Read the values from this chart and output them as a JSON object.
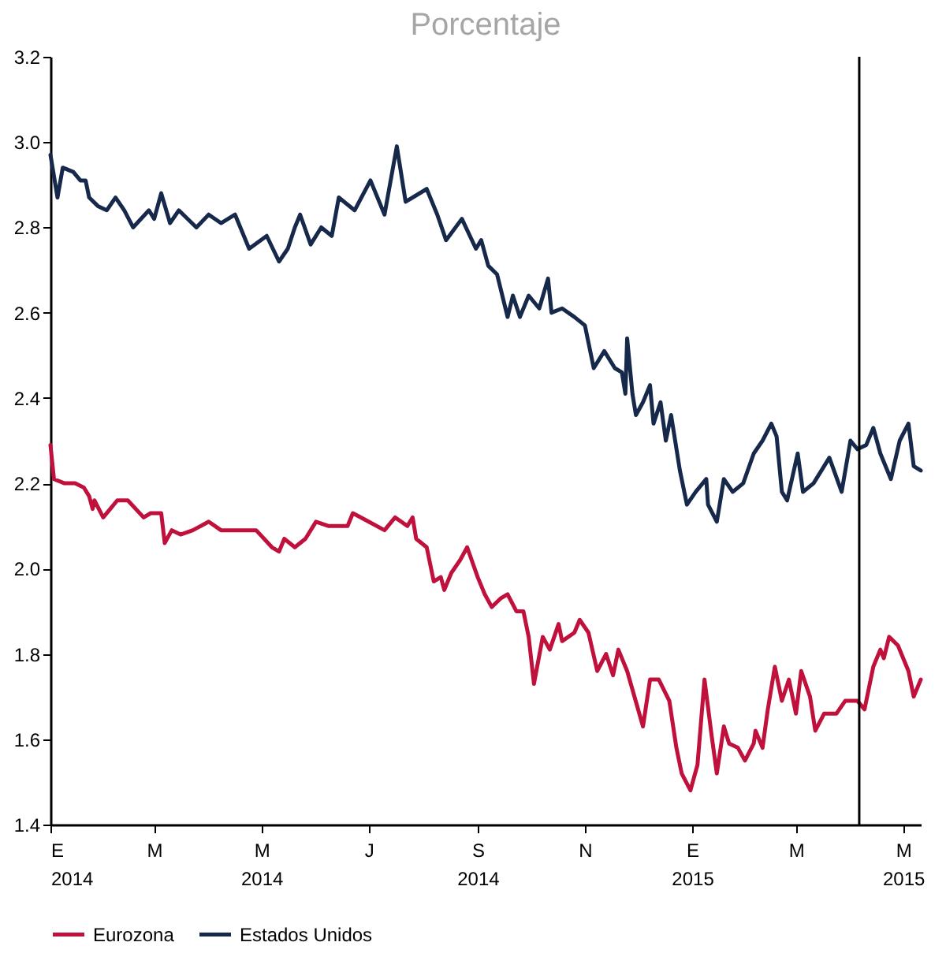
{
  "chart_data": {
    "type": "line",
    "title": "Porcentaje",
    "legend": "bottom",
    "line_style": "solid",
    "marker": "none",
    "grid": false,
    "xlim": [
      "2014-01-01",
      "2015-05-11"
    ],
    "ylim": [
      1.4,
      3.2
    ],
    "yticks": [
      1.4,
      1.6,
      1.8,
      {
        "value": 2,
        "label": "2.0"
      },
      2.2,
      2.4,
      2.6,
      2.8,
      {
        "value": 3,
        "label": "3.0"
      },
      3.2
    ],
    "xticks": [
      {
        "value": "2014-01-01",
        "label": "E 2014"
      },
      {
        "value": "2014-03-01",
        "label": "M"
      },
      {
        "value": "2014-05-01",
        "label": "M 2014"
      },
      {
        "value": "2014-07-01",
        "label": "J"
      },
      {
        "value": "2014-09-01",
        "label": "S 2014"
      },
      {
        "value": "2014-11-01",
        "label": "N"
      },
      {
        "value": "2015-01-01",
        "label": "E 2015"
      },
      {
        "value": "2015-03-01",
        "label": "M"
      },
      {
        "value": "2015-05-01",
        "label": "M 2015"
      }
    ],
    "ref_lines": [
      {
        "axis": "x",
        "value": "2015-04-06",
        "color": "#000000",
        "line_style": "solid"
      }
    ],
    "series": [
      {
        "name": "Eurozona",
        "color": "#c0103c",
        "x": [
          "2014-01-01",
          "2014-01-03",
          "2014-01-09",
          "2014-01-15",
          "2014-01-20",
          "2014-01-23",
          "2014-01-25",
          "2014-01-26",
          "2014-01-31",
          "2014-02-04",
          "2014-02-08",
          "2014-02-14",
          "2014-02-23",
          "2014-02-27",
          "2014-03-05",
          "2014-03-07",
          "2014-03-11",
          "2014-03-16",
          "2014-03-23",
          "2014-04-01",
          "2014-04-08",
          "2014-04-20",
          "2014-04-28",
          "2014-05-07",
          "2014-05-11",
          "2014-05-14",
          "2014-05-20",
          "2014-05-26",
          "2014-06-01",
          "2014-06-08",
          "2014-06-19",
          "2014-06-22",
          "2014-07-01",
          "2014-07-10",
          "2014-07-16",
          "2014-07-23",
          "2014-07-26",
          "2014-07-28",
          "2014-08-03",
          "2014-08-07",
          "2014-08-11",
          "2014-08-13",
          "2014-08-17",
          "2014-08-22",
          "2014-08-26",
          "2014-09-01",
          "2014-09-05",
          "2014-09-09",
          "2014-09-14",
          "2014-09-18",
          "2014-09-23",
          "2014-09-27",
          "2014-09-30",
          "2014-10-03",
          "2014-10-08",
          "2014-10-12",
          "2014-10-17",
          "2014-10-19",
          "2014-10-26",
          "2014-10-29",
          "2014-11-03",
          "2014-11-08",
          "2014-11-13",
          "2014-11-17",
          "2014-11-20",
          "2014-11-25",
          "2014-12-04",
          "2014-12-08",
          "2014-12-13",
          "2014-12-19",
          "2014-12-23",
          "2014-12-26",
          "2014-12-31",
          "2015-01-04",
          "2015-01-08",
          "2015-01-12",
          "2015-01-15",
          "2015-01-19",
          "2015-01-22",
          "2015-01-27",
          "2015-01-31",
          "2015-02-05",
          "2015-02-06",
          "2015-02-10",
          "2015-02-13",
          "2015-02-17",
          "2015-02-21",
          "2015-02-25",
          "2015-03-01",
          "2015-03-04",
          "2015-03-09",
          "2015-03-12",
          "2015-03-17",
          "2015-03-24",
          "2015-03-29",
          "2015-04-05",
          "2015-04-09",
          "2015-04-14",
          "2015-04-18",
          "2015-04-20",
          "2015-04-23",
          "2015-04-28",
          "2015-05-04",
          "2015-05-07",
          "2015-05-11"
        ],
        "values": [
          2.29,
          2.21,
          2.2,
          2.2,
          2.19,
          2.17,
          2.14,
          2.16,
          2.12,
          2.14,
          2.16,
          2.16,
          2.12,
          2.13,
          2.13,
          2.06,
          2.09,
          2.08,
          2.09,
          2.11,
          2.09,
          2.09,
          2.09,
          2.05,
          2.04,
          2.07,
          2.05,
          2.07,
          2.11,
          2.1,
          2.1,
          2.13,
          2.11,
          2.09,
          2.12,
          2.1,
          2.12,
          2.07,
          2.05,
          1.97,
          1.98,
          1.95,
          1.99,
          2.02,
          2.05,
          1.98,
          1.94,
          1.91,
          1.93,
          1.94,
          1.9,
          1.9,
          1.84,
          1.73,
          1.84,
          1.81,
          1.87,
          1.83,
          1.85,
          1.88,
          1.85,
          1.76,
          1.8,
          1.75,
          1.81,
          1.76,
          1.63,
          1.74,
          1.74,
          1.69,
          1.58,
          1.52,
          1.48,
          1.54,
          1.74,
          1.61,
          1.52,
          1.63,
          1.59,
          1.58,
          1.55,
          1.59,
          1.62,
          1.58,
          1.67,
          1.77,
          1.69,
          1.74,
          1.66,
          1.76,
          1.7,
          1.62,
          1.66,
          1.66,
          1.69,
          1.69,
          1.67,
          1.77,
          1.81,
          1.79,
          1.84,
          1.82,
          1.76,
          1.7,
          1.74
        ]
      },
      {
        "name": "Estados Unidos",
        "color": "#17294a",
        "x": [
          "2014-01-01",
          "2014-01-05",
          "2014-01-08",
          "2014-01-14",
          "2014-01-18",
          "2014-01-21",
          "2014-01-23",
          "2014-01-28",
          "2014-02-02",
          "2014-02-07",
          "2014-02-12",
          "2014-02-17",
          "2014-02-26",
          "2014-03-01",
          "2014-03-05",
          "2014-03-10",
          "2014-03-15",
          "2014-03-25",
          "2014-04-01",
          "2014-04-08",
          "2014-04-16",
          "2014-04-24",
          "2014-05-04",
          "2014-05-11",
          "2014-05-16",
          "2014-05-20",
          "2014-05-23",
          "2014-05-29",
          "2014-06-04",
          "2014-06-10",
          "2014-06-14",
          "2014-06-23",
          "2014-07-02",
          "2014-07-10",
          "2014-07-17",
          "2014-07-22",
          "2014-08-03",
          "2014-08-09",
          "2014-08-14",
          "2014-08-23",
          "2014-08-31",
          "2014-09-03",
          "2014-09-07",
          "2014-09-12",
          "2014-09-18",
          "2014-09-21",
          "2014-09-25",
          "2014-09-30",
          "2014-10-06",
          "2014-10-11",
          "2014-10-13",
          "2014-10-19",
          "2014-10-26",
          "2014-11-01",
          "2014-11-06",
          "2014-11-12",
          "2014-11-18",
          "2014-11-22",
          "2014-11-24",
          "2014-11-25",
          "2014-11-28",
          "2014-11-30",
          "2014-12-04",
          "2014-12-08",
          "2014-12-10",
          "2014-12-14",
          "2014-12-17",
          "2014-12-20",
          "2014-12-25",
          "2014-12-29",
          "2015-01-03",
          "2015-01-09",
          "2015-01-10",
          "2015-01-15",
          "2015-01-19",
          "2015-01-24",
          "2015-01-30",
          "2015-02-05",
          "2015-02-10",
          "2015-02-15",
          "2015-02-18",
          "2015-02-21",
          "2015-02-24",
          "2015-03-02",
          "2015-03-05",
          "2015-03-11",
          "2015-03-20",
          "2015-03-27",
          "2015-04-01",
          "2015-04-05",
          "2015-04-10",
          "2015-04-14",
          "2015-04-18",
          "2015-04-24",
          "2015-04-29",
          "2015-05-04",
          "2015-05-07",
          "2015-05-11"
        ],
        "values": [
          2.97,
          2.87,
          2.94,
          2.93,
          2.91,
          2.91,
          2.87,
          2.85,
          2.84,
          2.87,
          2.84,
          2.8,
          2.84,
          2.82,
          2.88,
          2.81,
          2.84,
          2.8,
          2.83,
          2.81,
          2.83,
          2.75,
          2.78,
          2.72,
          2.75,
          2.8,
          2.83,
          2.76,
          2.8,
          2.78,
          2.87,
          2.84,
          2.91,
          2.83,
          2.99,
          2.86,
          2.89,
          2.83,
          2.77,
          2.82,
          2.75,
          2.77,
          2.71,
          2.69,
          2.59,
          2.64,
          2.59,
          2.64,
          2.61,
          2.68,
          2.6,
          2.61,
          2.59,
          2.57,
          2.47,
          2.51,
          2.47,
          2.46,
          2.41,
          2.54,
          2.41,
          2.36,
          2.39,
          2.43,
          2.34,
          2.39,
          2.3,
          2.36,
          2.23,
          2.15,
          2.18,
          2.21,
          2.15,
          2.11,
          2.21,
          2.18,
          2.2,
          2.27,
          2.3,
          2.34,
          2.31,
          2.18,
          2.16,
          2.27,
          2.18,
          2.2,
          2.26,
          2.18,
          2.3,
          2.28,
          2.29,
          2.33,
          2.27,
          2.21,
          2.3,
          2.34,
          2.24,
          2.23
        ]
      }
    ]
  }
}
